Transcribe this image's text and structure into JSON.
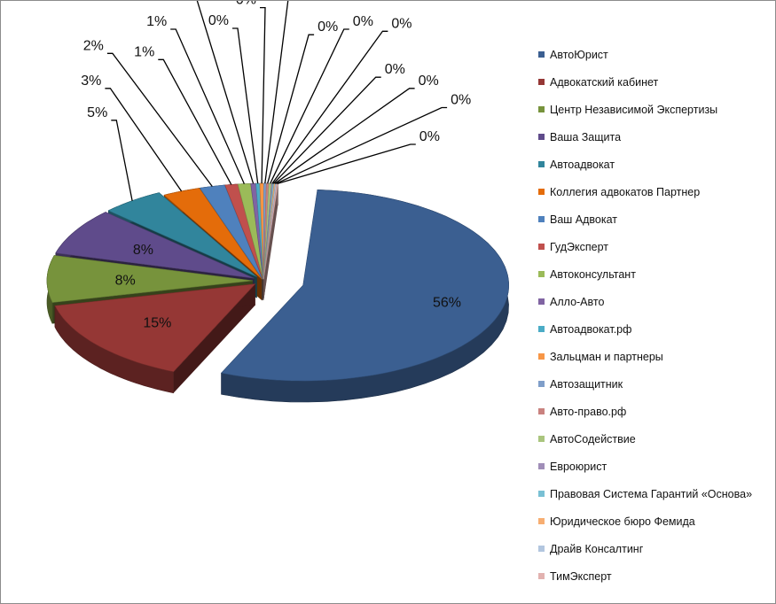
{
  "chart_data": {
    "type": "pie",
    "title": "",
    "categories": [
      "АвтоЮрист",
      "Адвокатский кабинет",
      "Центр Независимой Экспертизы",
      "Ваша Защита",
      "Автоадвокат",
      "Коллегия адвокатов Партнер",
      "Ваш Адвокат",
      "ГудЭксперт",
      "Автоконсультант",
      "Алло-Авто",
      "Автоадвокат.рф",
      "Зальцман и партнеры",
      "Автозащитник",
      "Авто-право.рф",
      "АвтоСодействие",
      "Евроюрист",
      "Правовая Система Гарантий «Основа»",
      "Юридическое бюро Фемида",
      "Драйв Консалтинг",
      "ТимЭксперт"
    ],
    "values": [
      56,
      15,
      8,
      8,
      5,
      3,
      2,
      1,
      1,
      0.4,
      0.3,
      0.3,
      0.2,
      0.2,
      0.2,
      0.1,
      0.1,
      0.1,
      0.1,
      0.1
    ],
    "labels": [
      "56%",
      "15%",
      "8%",
      "8%",
      "5%",
      "3%",
      "2%",
      "1%",
      "1%",
      "0%",
      "0%",
      "0%",
      "0%",
      "0%",
      "0%",
      "0%",
      "0%",
      "0%",
      "0%",
      "0%"
    ],
    "colors": [
      "#3b5f91",
      "#953735",
      "#77933c",
      "#5f4b8b",
      "#31859c",
      "#e46c0a",
      "#4f81bd",
      "#c0504d",
      "#9bbb59",
      "#8064a2",
      "#4bacc6",
      "#f79646",
      "#7f9ec9",
      "#c9827f",
      "#aac57e",
      "#a08eb8",
      "#79c0d4",
      "#f7ae72",
      "#b2c6df",
      "#e2b2b0"
    ],
    "legend_position": "right",
    "style": "3d-exploded"
  }
}
